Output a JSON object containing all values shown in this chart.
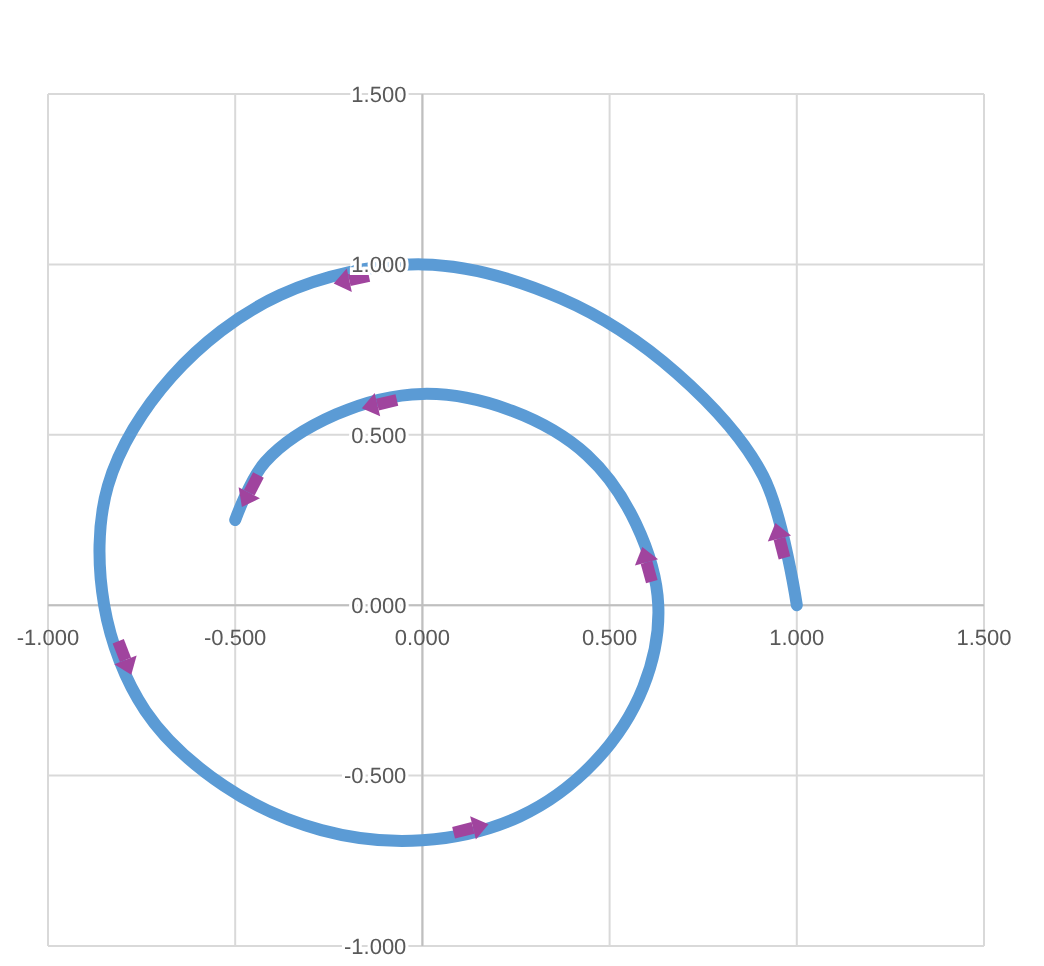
{
  "chart_data": {
    "type": "line",
    "xlim": [
      -1,
      1.5
    ],
    "ylim": [
      -1,
      1.5
    ],
    "xticks": [
      {
        "value": -1,
        "label": "-1.000"
      },
      {
        "value": -0.5,
        "label": "-0.500"
      },
      {
        "value": 0,
        "label": "0.000"
      },
      {
        "value": 0.5,
        "label": "0.500"
      },
      {
        "value": 1,
        "label": "1.000"
      },
      {
        "value": 1.5,
        "label": "1.500"
      }
    ],
    "yticks": [
      {
        "value": -1,
        "label": "-1.000"
      },
      {
        "value": -0.5,
        "label": "-0.500"
      },
      {
        "value": 0,
        "label": "0.000"
      },
      {
        "value": 0.5,
        "label": "0.500"
      },
      {
        "value": 1,
        "label": "1.000"
      },
      {
        "value": 1.5,
        "label": "1.500"
      }
    ],
    "grid": true,
    "marker": "none",
    "line_style": "solid",
    "series": [
      {
        "color": "#5b9bd5",
        "x": [
          1.0,
          0.91,
          0.68,
          0.37,
          0.0,
          -0.38,
          -0.67,
          -0.84,
          -0.85,
          -0.74,
          -0.53,
          -0.27,
          0.0,
          0.26,
          0.46,
          0.59,
          0.63,
          0.57,
          0.44,
          0.24,
          0.0,
          -0.23,
          -0.42,
          -0.5
        ],
        "values": [
          0.0,
          0.38,
          0.68,
          0.9,
          1.0,
          0.91,
          0.67,
          0.35,
          0.0,
          -0.31,
          -0.53,
          -0.66,
          -0.69,
          -0.62,
          -0.46,
          -0.24,
          0.0,
          0.24,
          0.44,
          0.57,
          0.62,
          0.56,
          0.42,
          0.25
        ]
      }
    ]
  }
}
